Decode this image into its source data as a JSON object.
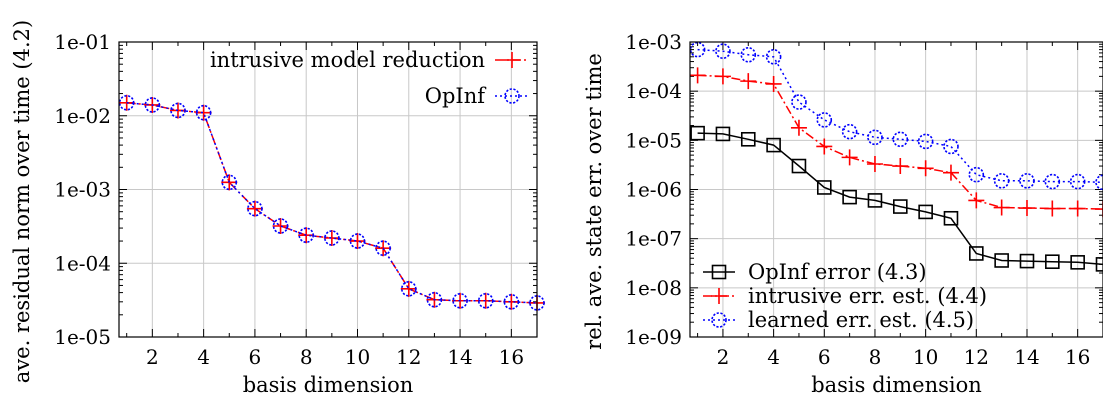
{
  "chart_data": [
    {
      "type": "line",
      "xlabel": "basis dimension",
      "ylabel": "ave. residual norm over time (4.2)",
      "xlim": [
        0.7,
        17
      ],
      "ylim": [
        1e-05,
        0.1
      ],
      "yscale": "log",
      "grid": true,
      "legend": "top-right",
      "xticks": [
        2,
        4,
        6,
        8,
        10,
        12,
        14,
        16
      ],
      "yticks": [
        1e-05,
        0.0001,
        0.001,
        0.01,
        0.1
      ],
      "ytick_labels": [
        "1e-05",
        "1e-04",
        "1e-03",
        "1e-02",
        "1e-01"
      ],
      "x": [
        1,
        2,
        3,
        4,
        5,
        6,
        7,
        8,
        9,
        10,
        11,
        12,
        13,
        14,
        15,
        16,
        17
      ],
      "series": [
        {
          "name": "intrusive model reduction",
          "color": "#ff0000",
          "marker": "plus",
          "dash": "dashdot",
          "values": [
            0.015,
            0.014,
            0.0118,
            0.011,
            0.00125,
            0.00055,
            0.00032,
            0.00024,
            0.00022,
            0.0002,
            0.00016,
            4.5e-05,
            3.2e-05,
            3.1e-05,
            3.1e-05,
            3e-05,
            2.9e-05
          ]
        },
        {
          "name": "OpInf",
          "color": "#0000ff",
          "marker": "circle",
          "dash": "dot",
          "values": [
            0.015,
            0.014,
            0.0118,
            0.011,
            0.00125,
            0.00055,
            0.00032,
            0.00024,
            0.00022,
            0.0002,
            0.00016,
            4.5e-05,
            3.2e-05,
            3.1e-05,
            3.1e-05,
            3e-05,
            2.9e-05
          ]
        }
      ]
    },
    {
      "type": "line",
      "xlabel": "basis dimension",
      "ylabel": "rel. ave. state err. over time",
      "xlim": [
        0.7,
        17
      ],
      "ylim": [
        1e-09,
        0.001
      ],
      "yscale": "log",
      "grid": true,
      "legend": "bottom-left",
      "xticks": [
        2,
        4,
        6,
        8,
        10,
        12,
        14,
        16
      ],
      "yticks": [
        1e-09,
        1e-08,
        1e-07,
        1e-06,
        1e-05,
        0.0001,
        0.001
      ],
      "ytick_labels": [
        "1e-09",
        "1e-08",
        "1e-07",
        "1e-06",
        "1e-05",
        "1e-04",
        "1e-03"
      ],
      "x": [
        1,
        2,
        3,
        4,
        5,
        6,
        7,
        8,
        9,
        10,
        11,
        12,
        13,
        14,
        15,
        16,
        17
      ],
      "series": [
        {
          "name": "OpInf error (4.3)",
          "color": "#000000",
          "marker": "square",
          "dash": "solid",
          "values": [
            1.4e-05,
            1.35e-05,
            1.05e-05,
            8e-06,
            3e-06,
            1.1e-06,
            7e-07,
            6e-07,
            4.5e-07,
            3.5e-07,
            2.6e-07,
            5e-08,
            3.6e-08,
            3.5e-08,
            3.4e-08,
            3.3e-08,
            3e-08
          ]
        },
        {
          "name": "intrusive err. est. (4.4)",
          "color": "#ff0000",
          "marker": "plus",
          "dash": "dashdot",
          "values": [
            0.00021,
            0.0002,
            0.00016,
            0.00014,
            1.8e-05,
            7.5e-06,
            4.5e-06,
            3.3e-06,
            3e-06,
            2.7e-06,
            2.2e-06,
            6e-07,
            4.3e-07,
            4.2e-07,
            4.1e-07,
            4.1e-07,
            4e-07
          ]
        },
        {
          "name": "learned err. est. (4.5)",
          "color": "#0000ff",
          "marker": "circle",
          "dash": "dot",
          "values": [
            0.0007,
            0.00065,
            0.00055,
            0.0005,
            6e-05,
            2.6e-05,
            1.5e-05,
            1.15e-05,
            1.05e-05,
            9.5e-06,
            7.5e-06,
            2e-06,
            1.5e-06,
            1.5e-06,
            1.45e-06,
            1.45e-06,
            1.4e-06
          ]
        }
      ]
    }
  ]
}
